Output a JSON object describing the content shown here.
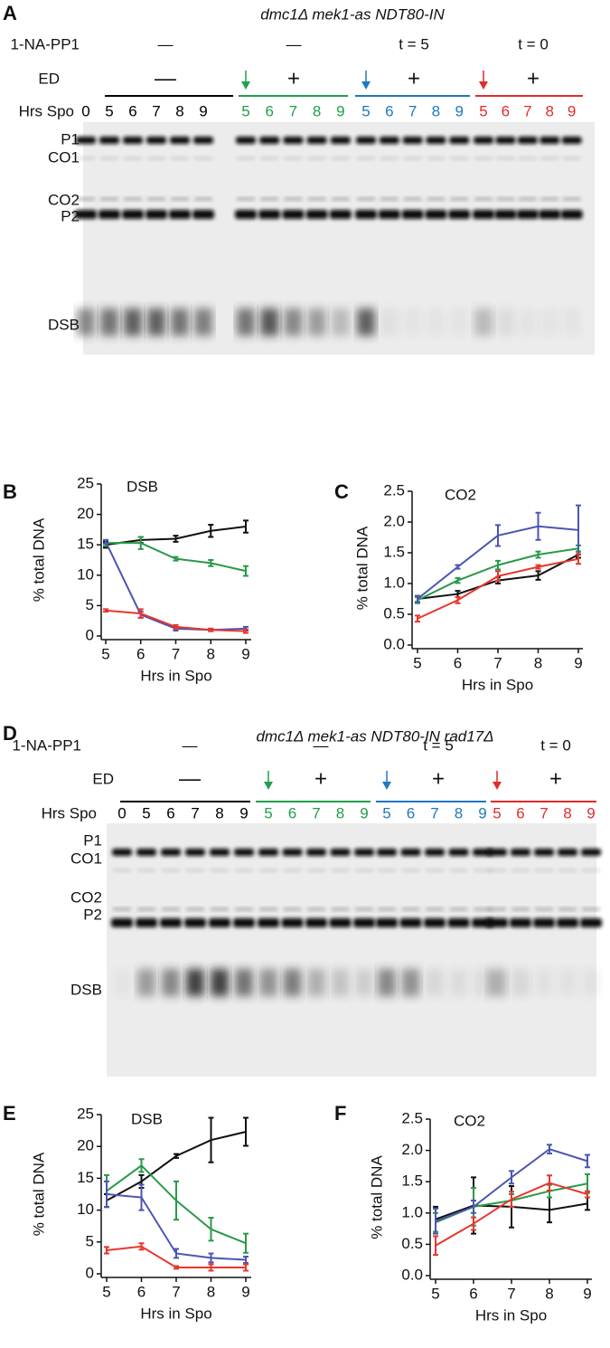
{
  "gels": [
    {
      "panel": "A",
      "title": "dmc1Δ mek1-as NDT80-IN",
      "row_labels": [
        "1-NA-PP1",
        "ED",
        "Hrs Spo"
      ],
      "groups": [
        {
          "drug": "—",
          "ed": "—",
          "color": "#000000",
          "lanes": [
            "0",
            "5",
            "6",
            "7",
            "8",
            "9"
          ]
        },
        {
          "drug": "—",
          "ed": "+",
          "color": "#1fa04a",
          "lanes": [
            "5",
            "6",
            "7",
            "8",
            "9"
          ]
        },
        {
          "drug": "t = 5",
          "ed": "+",
          "color": "#1f78c0",
          "lanes": [
            "5",
            "6",
            "7",
            "8",
            "9"
          ]
        },
        {
          "drug": "t = 0",
          "ed": "+",
          "color": "#e32b2b",
          "lanes": [
            "5",
            "6",
            "7",
            "8",
            "9"
          ]
        }
      ],
      "band_labels": [
        "P1",
        "CO1",
        "CO2",
        "P2",
        "DSB"
      ]
    },
    {
      "panel": "D",
      "title": "dmc1Δ mek1-as NDT80-IN rad17Δ",
      "row_labels": [
        "1-NA-PP1",
        "ED",
        "Hrs Spo"
      ],
      "groups": [
        {
          "drug": "—",
          "ed": "—",
          "color": "#000000",
          "lanes": [
            "0",
            "5",
            "6",
            "7",
            "8",
            "9"
          ]
        },
        {
          "drug": "—",
          "ed": "+",
          "color": "#1fa04a",
          "lanes": [
            "5",
            "6",
            "7",
            "8",
            "9"
          ]
        },
        {
          "drug": "t = 5",
          "ed": "+",
          "color": "#1f78c0",
          "lanes": [
            "5",
            "6",
            "7",
            "8",
            "9"
          ]
        },
        {
          "drug": "t = 0",
          "ed": "+",
          "color": "#e32b2b",
          "lanes": [
            "5",
            "6",
            "7",
            "8",
            "9"
          ]
        }
      ],
      "band_labels": [
        "P1",
        "CO1",
        "CO2",
        "P2",
        "DSB"
      ]
    }
  ],
  "chart_data": [
    {
      "type": "line",
      "panel": "B",
      "title": "DSB",
      "y_label": "% total DNA",
      "x_label": "Hrs in Spo",
      "x": [
        5,
        6,
        7,
        8,
        9
      ],
      "xlim": [
        5,
        9
      ],
      "xticks": [
        5,
        6,
        7,
        8,
        9
      ],
      "ylim": [
        0,
        25
      ],
      "yticks": [
        0,
        5,
        10,
        15,
        20,
        25
      ],
      "series": [
        {
          "color": "#111111",
          "values": [
            15,
            15.8,
            16,
            17.3,
            18
          ],
          "errors": [
            0.5,
            0.5,
            0.5,
            1,
            1
          ]
        },
        {
          "color": "#2a9a48",
          "values": [
            15.3,
            15.3,
            12.7,
            12,
            10.7
          ],
          "errors": [
            0.5,
            1,
            0.3,
            0.5,
            0.8
          ]
        },
        {
          "color": "#4a56b0",
          "values": [
            15.5,
            3.5,
            1.2,
            1,
            1.2
          ],
          "errors": [
            0.3,
            0.5,
            0.3,
            0.2,
            0.3
          ]
        },
        {
          "color": "#e8362d",
          "values": [
            4.2,
            3.7,
            1.5,
            1,
            0.8
          ],
          "errors": [
            0.2,
            0.7,
            0.3,
            0.2,
            0.3
          ]
        }
      ]
    },
    {
      "type": "line",
      "panel": "C",
      "title": "CO2",
      "y_label": "% total DNA",
      "x_label": "Hrs in Spo",
      "x": [
        5,
        6,
        7,
        8,
        9
      ],
      "xlim": [
        5,
        9
      ],
      "xticks": [
        5,
        6,
        7,
        8,
        9
      ],
      "ylim": [
        0,
        2.5
      ],
      "yticks": [
        {
          "value": 0,
          "label": "0.0"
        },
        0.5,
        {
          "value": 1,
          "label": "1.0"
        },
        1.5,
        {
          "value": 2,
          "label": "2.0"
        },
        2.5
      ],
      "series": [
        {
          "color": "#111111",
          "values": [
            0.75,
            0.83,
            1.05,
            1.13,
            1.47
          ],
          "errors": [
            0.05,
            0.05,
            0.05,
            0.07,
            0.05
          ]
        },
        {
          "color": "#2a9a48",
          "values": [
            0.73,
            1.05,
            1.3,
            1.47,
            1.57
          ],
          "errors": [
            0.05,
            0.04,
            0.07,
            0.05,
            0.05
          ]
        },
        {
          "color": "#4a56b0",
          "values": [
            0.75,
            1.27,
            1.78,
            1.93,
            1.87
          ],
          "errors": [
            0.05,
            0.03,
            0.17,
            0.22,
            0.4
          ]
        },
        {
          "color": "#e8362d",
          "values": [
            0.43,
            0.73,
            1.12,
            1.27,
            1.4
          ],
          "errors": [
            0.05,
            0.05,
            0.08,
            0.03,
            0.08
          ]
        }
      ]
    },
    {
      "type": "line",
      "panel": "E",
      "title": "DSB",
      "y_label": "% total DNA",
      "x_label": "Hrs in Spo",
      "x": [
        5,
        6,
        7,
        8,
        9
      ],
      "xlim": [
        5,
        9
      ],
      "xticks": [
        5,
        6,
        7,
        8,
        9
      ],
      "ylim": [
        0,
        25
      ],
      "yticks": [
        0,
        5,
        10,
        15,
        20,
        25
      ],
      "series": [
        {
          "color": "#111111",
          "values": [
            11.5,
            14.5,
            18.5,
            21,
            22.3
          ],
          "errors": [
            1,
            1,
            0.3,
            3.5,
            2.2
          ]
        },
        {
          "color": "#2a9a48",
          "values": [
            13,
            17,
            11.5,
            7,
            4.8
          ],
          "errors": [
            2.5,
            1,
            3,
            1.8,
            1.5
          ]
        },
        {
          "color": "#4a56b0",
          "values": [
            12.5,
            12,
            3.2,
            2.5,
            2.2
          ],
          "errors": [
            2,
            2,
            0.7,
            0.7,
            0.5
          ]
        },
        {
          "color": "#e8362d",
          "values": [
            3.7,
            4.3,
            1,
            1,
            1
          ],
          "errors": [
            0.5,
            0.5,
            0.2,
            0.5,
            0.5
          ]
        }
      ]
    },
    {
      "type": "line",
      "panel": "F",
      "title": "CO2",
      "y_label": "% total DNA",
      "x_label": "Hrs in Spo",
      "x": [
        5,
        6,
        7,
        8,
        9
      ],
      "xlim": [
        5,
        9
      ],
      "xticks": [
        5,
        6,
        7,
        8,
        9
      ],
      "ylim": [
        0,
        2.5
      ],
      "yticks": [
        {
          "value": 0,
          "label": "0.0"
        },
        0.5,
        {
          "value": 1,
          "label": "1.0"
        },
        1.5,
        {
          "value": 2,
          "label": "2.0"
        },
        2.5
      ],
      "series": [
        {
          "color": "#111111",
          "values": [
            0.9,
            1.12,
            1.1,
            1.05,
            1.15
          ],
          "errors": [
            0.2,
            0.45,
            0.33,
            0.2,
            0.1
          ]
        },
        {
          "color": "#2a9a48",
          "values": [
            0.85,
            1.1,
            1.2,
            1.35,
            1.47
          ],
          "errors": [
            0.15,
            0.3,
            0.1,
            0.1,
            0.15
          ]
        },
        {
          "color": "#4a56b0",
          "values": [
            0.87,
            1.1,
            1.57,
            2.02,
            1.83
          ],
          "errors": [
            0.2,
            0.1,
            0.1,
            0.07,
            0.1
          ]
        },
        {
          "color": "#e8362d",
          "values": [
            0.48,
            0.83,
            1.22,
            1.48,
            1.3
          ],
          "errors": [
            0.15,
            0.1,
            0.12,
            0.12,
            0.05
          ]
        }
      ]
    }
  ]
}
